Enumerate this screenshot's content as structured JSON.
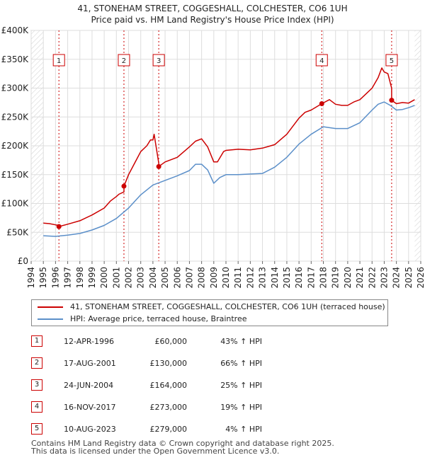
{
  "chart_data": {
    "type": "line",
    "title": "41, STONEHAM STREET, COGGESHALL, COLCHESTER, CO6 1UH",
    "subtitle": "Price paid vs. HM Land Registry's House Price Index (HPI)",
    "xlabel": "",
    "ylabel": "",
    "xlim": [
      1994,
      2026
    ],
    "ylim": [
      0,
      400000
    ],
    "y_ticks": [
      0,
      50000,
      100000,
      150000,
      200000,
      250000,
      300000,
      350000,
      400000
    ],
    "y_tick_labels": [
      "£0",
      "£50K",
      "£100K",
      "£150K",
      "£200K",
      "£250K",
      "£300K",
      "£350K",
      "£400K"
    ],
    "x_ticks": [
      1994,
      1995,
      1996,
      1997,
      1998,
      1999,
      2000,
      2001,
      2002,
      2003,
      2004,
      2005,
      2006,
      2007,
      2008,
      2009,
      2010,
      2011,
      2012,
      2013,
      2014,
      2015,
      2016,
      2017,
      2018,
      2019,
      2020,
      2021,
      2022,
      2023,
      2024,
      2025,
      2026
    ],
    "data_start": 1995.0,
    "data_end": 2025.5,
    "grid": true,
    "legend_position": "below",
    "series": [
      {
        "name": "41, STONEHAM STREET, COGGESHALL, COLCHESTER, CO6 1UH (terraced house)",
        "color": "#cc0000",
        "x": [
          1995.0,
          1995.5,
          1996.0,
          1996.28,
          1996.28,
          1997.0,
          1998.0,
          1999.0,
          2000.0,
          2000.5,
          2001.0,
          2001.2,
          2001.62,
          2001.62,
          2002.0,
          2002.5,
          2003.0,
          2003.5,
          2003.8,
          2004.0,
          2004.1,
          2004.48,
          2004.48,
          2005.0,
          2006.0,
          2007.0,
          2007.5,
          2008.0,
          2008.5,
          2009.0,
          2009.3,
          2009.8,
          2010.0,
          2011.0,
          2012.0,
          2013.0,
          2014.0,
          2015.0,
          2016.0,
          2016.5,
          2017.0,
          2017.87,
          2017.87,
          2018.5,
          2019.0,
          2019.5,
          2020.0,
          2020.5,
          2021.0,
          2021.5,
          2022.0,
          2022.5,
          2022.8,
          2023.0,
          2023.3,
          2023.61,
          2023.61,
          2024.0,
          2024.5,
          2025.0,
          2025.5
        ],
        "values": [
          66000,
          65000,
          63000,
          62000,
          60000,
          64000,
          70000,
          80000,
          92000,
          104000,
          112000,
          116000,
          120000,
          130000,
          150000,
          170000,
          190000,
          200000,
          210000,
          210000,
          220000,
          170000,
          164000,
          172000,
          180000,
          198000,
          208000,
          212000,
          198000,
          172000,
          172000,
          190000,
          192000,
          194000,
          193000,
          196000,
          202000,
          220000,
          248000,
          258000,
          262000,
          273000,
          273000,
          280000,
          272000,
          270000,
          270000,
          276000,
          280000,
          290000,
          300000,
          318000,
          335000,
          328000,
          325000,
          300000,
          279000,
          273000,
          275000,
          274000,
          280000
        ]
      },
      {
        "name": "HPI: Average price, terraced house, Braintree",
        "color": "#5b8fc9",
        "x": [
          1995.0,
          1996.0,
          1997.0,
          1998.0,
          1999.0,
          2000.0,
          2001.0,
          2002.0,
          2003.0,
          2004.0,
          2005.0,
          2006.0,
          2007.0,
          2007.5,
          2008.0,
          2008.5,
          2009.0,
          2009.5,
          2010.0,
          2011.0,
          2012.0,
          2013.0,
          2014.0,
          2015.0,
          2016.0,
          2017.0,
          2018.0,
          2019.0,
          2020.0,
          2021.0,
          2022.0,
          2022.5,
          2023.0,
          2023.5,
          2024.0,
          2024.5,
          2025.0,
          2025.5
        ],
        "values": [
          44000,
          43000,
          45000,
          48000,
          54000,
          62000,
          74000,
          92000,
          115000,
          132000,
          140000,
          148000,
          157000,
          168000,
          168000,
          158000,
          135000,
          145000,
          150000,
          150000,
          151000,
          152000,
          163000,
          180000,
          203000,
          220000,
          233000,
          230000,
          230000,
          240000,
          262000,
          272000,
          276000,
          270000,
          262000,
          263000,
          266000,
          270000
        ]
      }
    ],
    "sales": [
      {
        "n": "1",
        "x": 1996.28,
        "price": 60000
      },
      {
        "n": "2",
        "x": 2001.62,
        "price": 130000
      },
      {
        "n": "3",
        "x": 2004.48,
        "price": 164000
      },
      {
        "n": "4",
        "x": 2017.87,
        "price": 273000
      },
      {
        "n": "5",
        "x": 2023.61,
        "price": 279000
      }
    ]
  },
  "legend": {
    "property": "41, STONEHAM STREET, COGGESHALL, COLCHESTER, CO6 1UH (terraced house)",
    "hpi": "HPI: Average price, terraced house, Braintree"
  },
  "table": [
    {
      "n": "1",
      "date": "12-APR-1996",
      "price": "£60,000",
      "hpi": "43% ↑ HPI"
    },
    {
      "n": "2",
      "date": "17-AUG-2001",
      "price": "£130,000",
      "hpi": "66% ↑ HPI"
    },
    {
      "n": "3",
      "date": "24-JUN-2004",
      "price": "£164,000",
      "hpi": "25% ↑ HPI"
    },
    {
      "n": "4",
      "date": "16-NOV-2017",
      "price": "£273,000",
      "hpi": "19% ↑ HPI"
    },
    {
      "n": "5",
      "date": "10-AUG-2023",
      "price": "£279,000",
      "hpi": "4% ↑ HPI"
    }
  ],
  "footer": {
    "line1": "Contains HM Land Registry data © Crown copyright and database right 2025.",
    "line2": "This data is licensed under the Open Government Licence v3.0."
  }
}
